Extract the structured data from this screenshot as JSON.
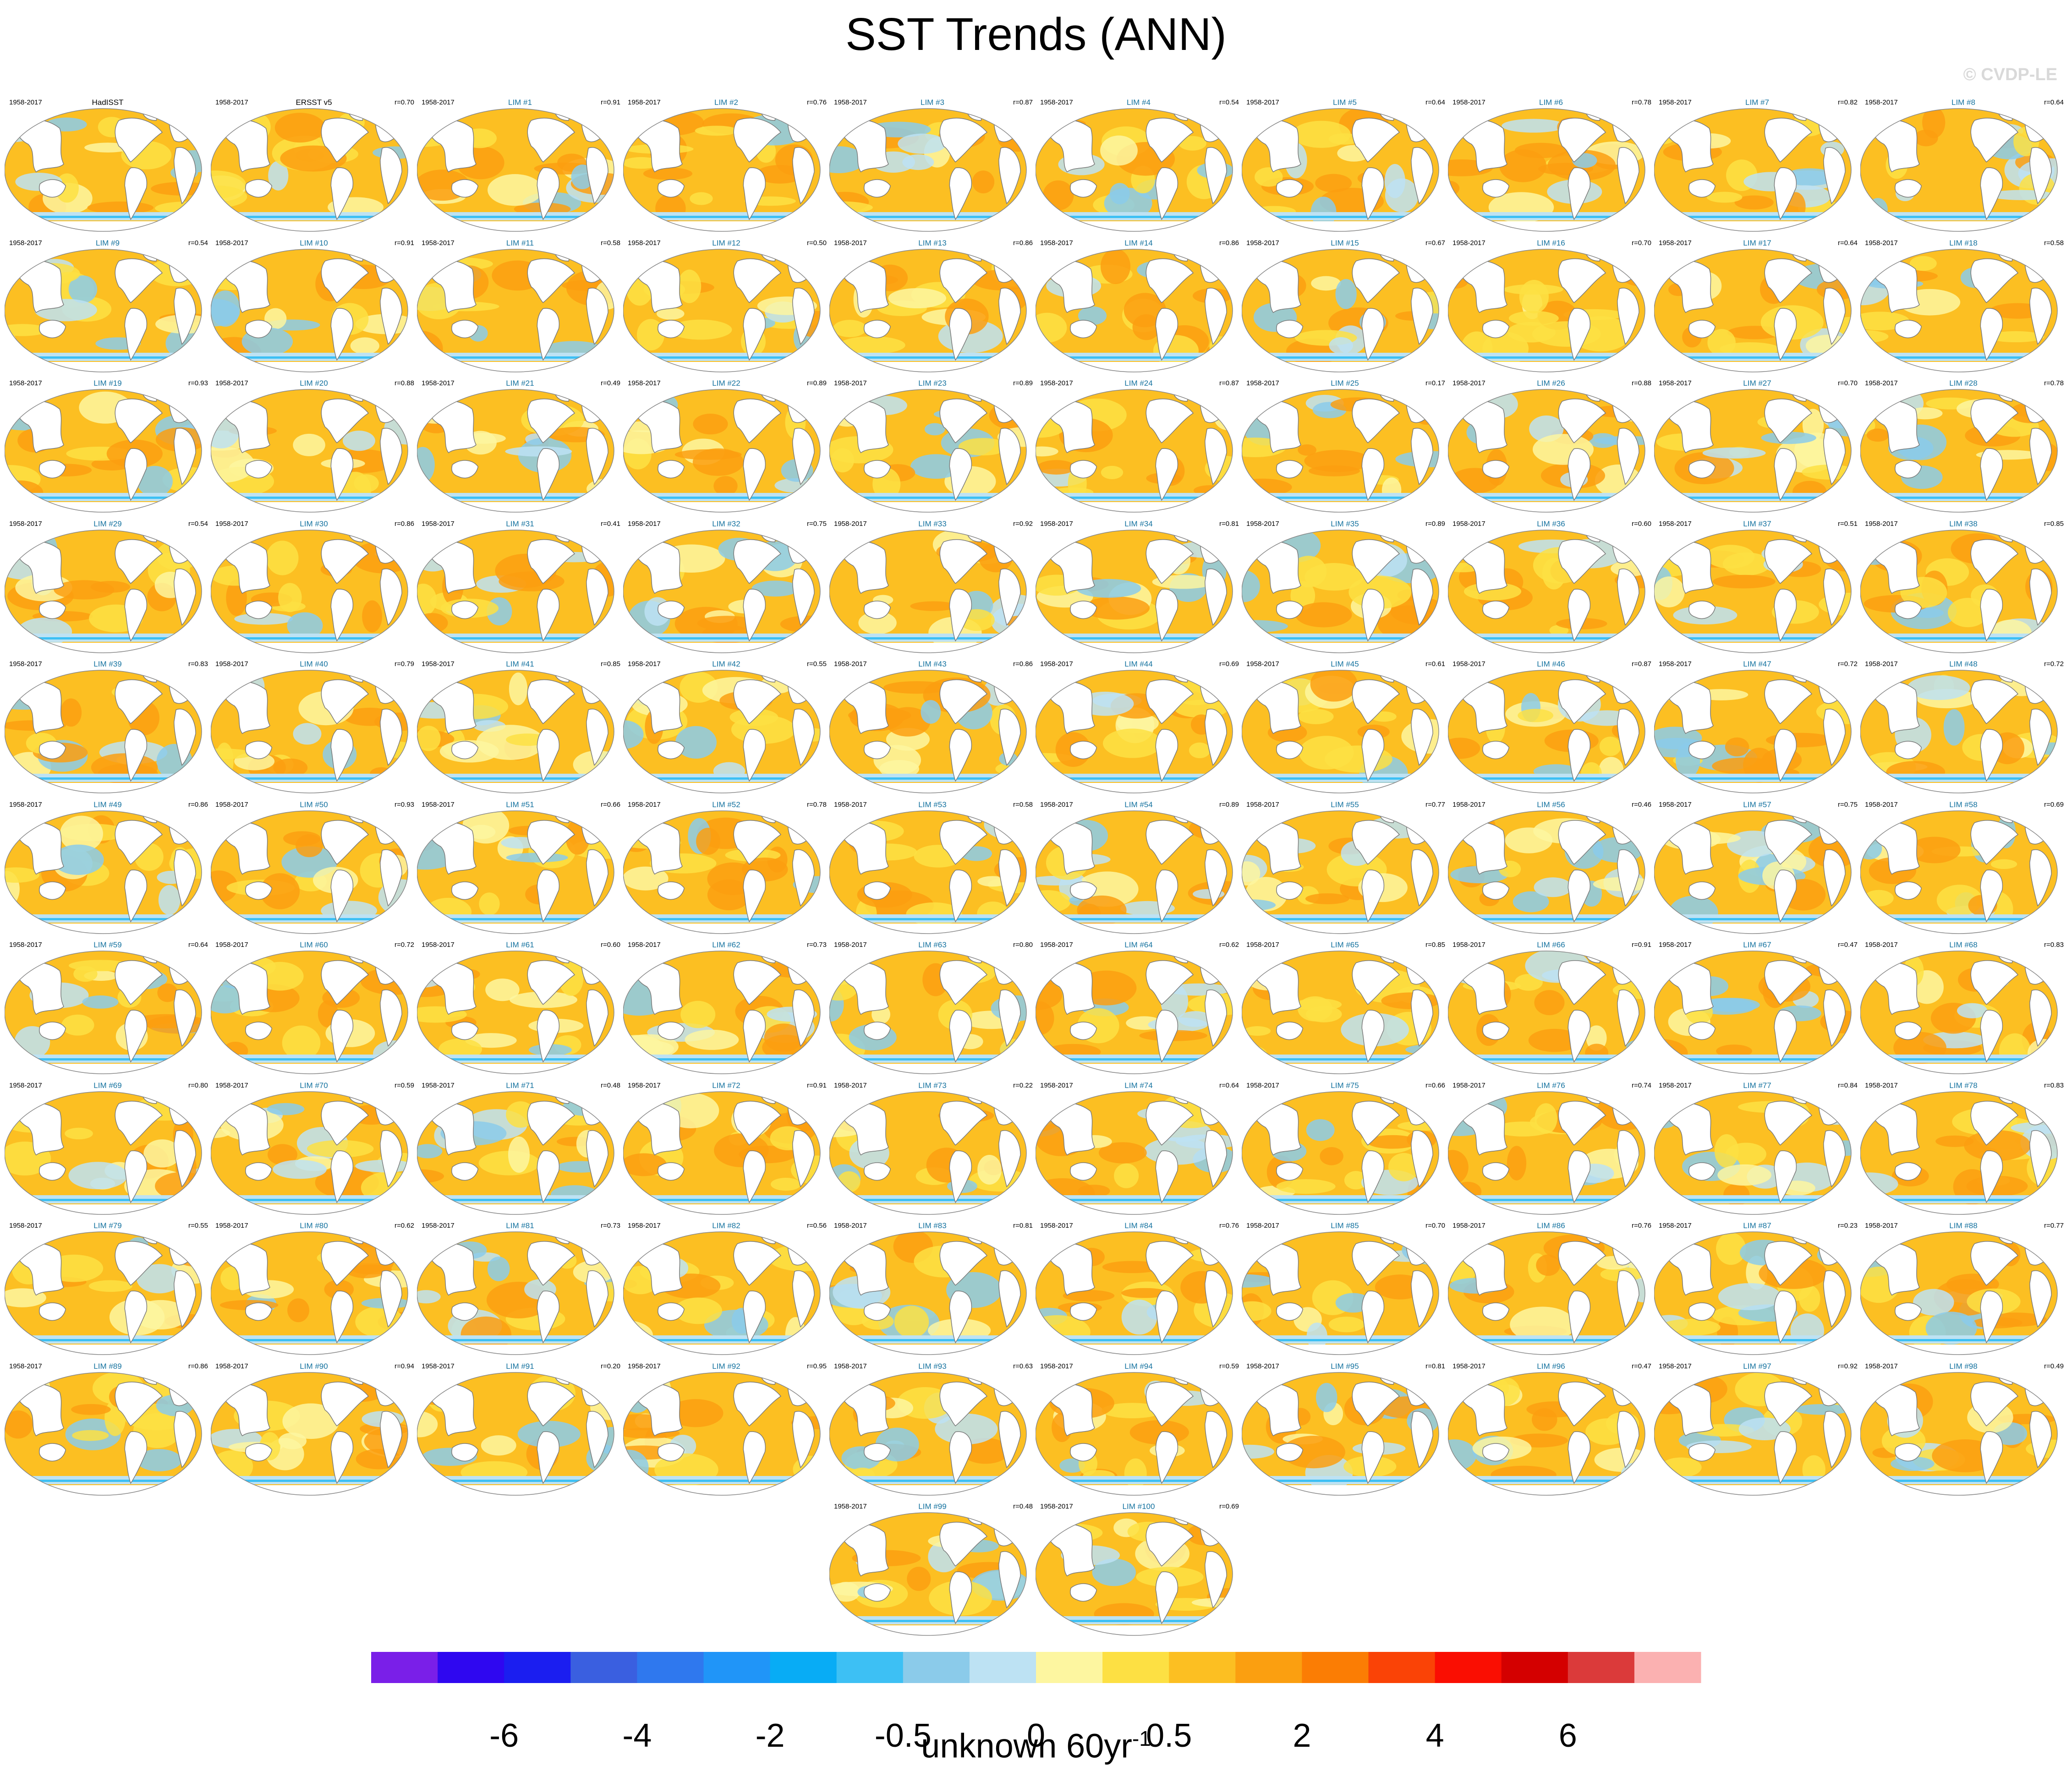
{
  "title": "SST Trends (ANN)",
  "watermark": "© CVDP-LE",
  "units": {
    "base": "unknown 60yr",
    "exponent": "-1"
  },
  "chart_data": {
    "type": "heatmap",
    "title": "SST Trends (ANN)",
    "variable": "SST",
    "units": "unknown 60yr-1",
    "period": "1958-2017",
    "projection": "Robinson (Pacific-centred world map panels)",
    "colorbar": {
      "tick_labels": [
        "-6",
        "-4",
        "-2",
        "-0.5",
        "0",
        "0.5",
        "2",
        "4",
        "6"
      ],
      "colors": [
        "#7a1fe8",
        "#2f07f0",
        "#1b1ef0",
        "#3a5fe0",
        "#2f78ee",
        "#2095f8",
        "#08acf5",
        "#3dc0f4",
        "#8bcbea",
        "#bde2f3",
        "#fdf6a0",
        "#fde043",
        "#fcbf22",
        "#fb9f10",
        "#fb7d04",
        "#fa4306",
        "#fa0e02",
        "#d40000",
        "#db3a3a",
        "#fbb1b1"
      ]
    },
    "panels": [
      {
        "title": "HadISST",
        "years": "1958-2017",
        "r": "",
        "color": "#000000"
      },
      {
        "title": "ERSST v5",
        "years": "1958-2017",
        "r": "r=0.70",
        "color": "#000000"
      },
      {
        "title": "LIM #1",
        "years": "1958-2017",
        "r": "r=0.91",
        "color": "#14729f"
      },
      {
        "title": "LIM #2",
        "years": "1958-2017",
        "r": "r=0.76",
        "color": "#14729f"
      },
      {
        "title": "LIM #3",
        "years": "1958-2017",
        "r": "r=0.87",
        "color": "#14729f"
      },
      {
        "title": "LIM #4",
        "years": "1958-2017",
        "r": "r=0.54",
        "color": "#14729f"
      },
      {
        "title": "LIM #5",
        "years": "1958-2017",
        "r": "r=0.64",
        "color": "#14729f"
      },
      {
        "title": "LIM #6",
        "years": "1958-2017",
        "r": "r=0.78",
        "color": "#14729f"
      },
      {
        "title": "LIM #7",
        "years": "1958-2017",
        "r": "r=0.82",
        "color": "#14729f"
      },
      {
        "title": "LIM #8",
        "years": "1958-2017",
        "r": "r=0.64",
        "color": "#14729f"
      },
      {
        "title": "LIM #9",
        "years": "1958-2017",
        "r": "r=0.54",
        "color": "#14729f"
      },
      {
        "title": "LIM #10",
        "years": "1958-2017",
        "r": "r=0.91",
        "color": "#14729f"
      },
      {
        "title": "LIM #11",
        "years": "1958-2017",
        "r": "r=0.58",
        "color": "#14729f"
      },
      {
        "title": "LIM #12",
        "years": "1958-2017",
        "r": "r=0.50",
        "color": "#14729f"
      },
      {
        "title": "LIM #13",
        "years": "1958-2017",
        "r": "r=0.86",
        "color": "#14729f"
      },
      {
        "title": "LIM #14",
        "years": "1958-2017",
        "r": "r=0.86",
        "color": "#14729f"
      },
      {
        "title": "LIM #15",
        "years": "1958-2017",
        "r": "r=0.67",
        "color": "#14729f"
      },
      {
        "title": "LIM #16",
        "years": "1958-2017",
        "r": "r=0.70",
        "color": "#14729f"
      },
      {
        "title": "LIM #17",
        "years": "1958-2017",
        "r": "r=0.64",
        "color": "#14729f"
      },
      {
        "title": "LIM #18",
        "years": "1958-2017",
        "r": "r=0.58",
        "color": "#14729f"
      },
      {
        "title": "LIM #19",
        "years": "1958-2017",
        "r": "r=0.93",
        "color": "#14729f"
      },
      {
        "title": "LIM #20",
        "years": "1958-2017",
        "r": "r=0.88",
        "color": "#14729f"
      },
      {
        "title": "LIM #21",
        "years": "1958-2017",
        "r": "r=0.49",
        "color": "#14729f"
      },
      {
        "title": "LIM #22",
        "years": "1958-2017",
        "r": "r=0.89",
        "color": "#14729f"
      },
      {
        "title": "LIM #23",
        "years": "1958-2017",
        "r": "r=0.89",
        "color": "#14729f"
      },
      {
        "title": "LIM #24",
        "years": "1958-2017",
        "r": "r=0.87",
        "color": "#14729f"
      },
      {
        "title": "LIM #25",
        "years": "1958-2017",
        "r": "r=0.17",
        "color": "#14729f"
      },
      {
        "title": "LIM #26",
        "years": "1958-2017",
        "r": "r=0.88",
        "color": "#14729f"
      },
      {
        "title": "LIM #27",
        "years": "1958-2017",
        "r": "r=0.70",
        "color": "#14729f"
      },
      {
        "title": "LIM #28",
        "years": "1958-2017",
        "r": "r=0.78",
        "color": "#14729f"
      },
      {
        "title": "LIM #29",
        "years": "1958-2017",
        "r": "r=0.54",
        "color": "#14729f"
      },
      {
        "title": "LIM #30",
        "years": "1958-2017",
        "r": "r=0.86",
        "color": "#14729f"
      },
      {
        "title": "LIM #31",
        "years": "1958-2017",
        "r": "r=0.41",
        "color": "#14729f"
      },
      {
        "title": "LIM #32",
        "years": "1958-2017",
        "r": "r=0.75",
        "color": "#14729f"
      },
      {
        "title": "LIM #33",
        "years": "1958-2017",
        "r": "r=0.92",
        "color": "#14729f"
      },
      {
        "title": "LIM #34",
        "years": "1958-2017",
        "r": "r=0.81",
        "color": "#14729f"
      },
      {
        "title": "LIM #35",
        "years": "1958-2017",
        "r": "r=0.89",
        "color": "#14729f"
      },
      {
        "title": "LIM #36",
        "years": "1958-2017",
        "r": "r=0.60",
        "color": "#14729f"
      },
      {
        "title": "LIM #37",
        "years": "1958-2017",
        "r": "r=0.51",
        "color": "#14729f"
      },
      {
        "title": "LIM #38",
        "years": "1958-2017",
        "r": "r=0.85",
        "color": "#14729f"
      },
      {
        "title": "LIM #39",
        "years": "1958-2017",
        "r": "r=0.83",
        "color": "#14729f"
      },
      {
        "title": "LIM #40",
        "years": "1958-2017",
        "r": "r=0.79",
        "color": "#14729f"
      },
      {
        "title": "LIM #41",
        "years": "1958-2017",
        "r": "r=0.85",
        "color": "#14729f"
      },
      {
        "title": "LIM #42",
        "years": "1958-2017",
        "r": "r=0.55",
        "color": "#14729f"
      },
      {
        "title": "LIM #43",
        "years": "1958-2017",
        "r": "r=0.86",
        "color": "#14729f"
      },
      {
        "title": "LIM #44",
        "years": "1958-2017",
        "r": "r=0.69",
        "color": "#14729f"
      },
      {
        "title": "LIM #45",
        "years": "1958-2017",
        "r": "r=0.61",
        "color": "#14729f"
      },
      {
        "title": "LIM #46",
        "years": "1958-2017",
        "r": "r=0.87",
        "color": "#14729f"
      },
      {
        "title": "LIM #47",
        "years": "1958-2017",
        "r": "r=0.72",
        "color": "#14729f"
      },
      {
        "title": "LIM #48",
        "years": "1958-2017",
        "r": "r=0.72",
        "color": "#14729f"
      },
      {
        "title": "LIM #49",
        "years": "1958-2017",
        "r": "r=0.86",
        "color": "#14729f"
      },
      {
        "title": "LIM #50",
        "years": "1958-2017",
        "r": "r=0.93",
        "color": "#14729f"
      },
      {
        "title": "LIM #51",
        "years": "1958-2017",
        "r": "r=0.66",
        "color": "#14729f"
      },
      {
        "title": "LIM #52",
        "years": "1958-2017",
        "r": "r=0.78",
        "color": "#14729f"
      },
      {
        "title": "LIM #53",
        "years": "1958-2017",
        "r": "r=0.58",
        "color": "#14729f"
      },
      {
        "title": "LIM #54",
        "years": "1958-2017",
        "r": "r=0.89",
        "color": "#14729f"
      },
      {
        "title": "LIM #55",
        "years": "1958-2017",
        "r": "r=0.77",
        "color": "#14729f"
      },
      {
        "title": "LIM #56",
        "years": "1958-2017",
        "r": "r=0.46",
        "color": "#14729f"
      },
      {
        "title": "LIM #57",
        "years": "1958-2017",
        "r": "r=0.75",
        "color": "#14729f"
      },
      {
        "title": "LIM #58",
        "years": "1958-2017",
        "r": "r=0.69",
        "color": "#14729f"
      },
      {
        "title": "LIM #59",
        "years": "1958-2017",
        "r": "r=0.64",
        "color": "#14729f"
      },
      {
        "title": "LIM #60",
        "years": "1958-2017",
        "r": "r=0.72",
        "color": "#14729f"
      },
      {
        "title": "LIM #61",
        "years": "1958-2017",
        "r": "r=0.60",
        "color": "#14729f"
      },
      {
        "title": "LIM #62",
        "years": "1958-2017",
        "r": "r=0.73",
        "color": "#14729f"
      },
      {
        "title": "LIM #63",
        "years": "1958-2017",
        "r": "r=0.80",
        "color": "#14729f"
      },
      {
        "title": "LIM #64",
        "years": "1958-2017",
        "r": "r=0.62",
        "color": "#14729f"
      },
      {
        "title": "LIM #65",
        "years": "1958-2017",
        "r": "r=0.85",
        "color": "#14729f"
      },
      {
        "title": "LIM #66",
        "years": "1958-2017",
        "r": "r=0.91",
        "color": "#14729f"
      },
      {
        "title": "LIM #67",
        "years": "1958-2017",
        "r": "r=0.47",
        "color": "#14729f"
      },
      {
        "title": "LIM #68",
        "years": "1958-2017",
        "r": "r=0.83",
        "color": "#14729f"
      },
      {
        "title": "LIM #69",
        "years": "1958-2017",
        "r": "r=0.80",
        "color": "#14729f"
      },
      {
        "title": "LIM #70",
        "years": "1958-2017",
        "r": "r=0.59",
        "color": "#14729f"
      },
      {
        "title": "LIM #71",
        "years": "1958-2017",
        "r": "r=0.48",
        "color": "#14729f"
      },
      {
        "title": "LIM #72",
        "years": "1958-2017",
        "r": "r=0.91",
        "color": "#14729f"
      },
      {
        "title": "LIM #73",
        "years": "1958-2017",
        "r": "r=0.22",
        "color": "#14729f"
      },
      {
        "title": "LIM #74",
        "years": "1958-2017",
        "r": "r=0.64",
        "color": "#14729f"
      },
      {
        "title": "LIM #75",
        "years": "1958-2017",
        "r": "r=0.66",
        "color": "#14729f"
      },
      {
        "title": "LIM #76",
        "years": "1958-2017",
        "r": "r=0.74",
        "color": "#14729f"
      },
      {
        "title": "LIM #77",
        "years": "1958-2017",
        "r": "r=0.84",
        "color": "#14729f"
      },
      {
        "title": "LIM #78",
        "years": "1958-2017",
        "r": "r=0.83",
        "color": "#14729f"
      },
      {
        "title": "LIM #79",
        "years": "1958-2017",
        "r": "r=0.55",
        "color": "#14729f"
      },
      {
        "title": "LIM #80",
        "years": "1958-2017",
        "r": "r=0.62",
        "color": "#14729f"
      },
      {
        "title": "LIM #81",
        "years": "1958-2017",
        "r": "r=0.73",
        "color": "#14729f"
      },
      {
        "title": "LIM #82",
        "years": "1958-2017",
        "r": "r=0.56",
        "color": "#14729f"
      },
      {
        "title": "LIM #83",
        "years": "1958-2017",
        "r": "r=0.81",
        "color": "#14729f"
      },
      {
        "title": "LIM #84",
        "years": "1958-2017",
        "r": "r=0.76",
        "color": "#14729f"
      },
      {
        "title": "LIM #85",
        "years": "1958-2017",
        "r": "r=0.70",
        "color": "#14729f"
      },
      {
        "title": "LIM #86",
        "years": "1958-2017",
        "r": "r=0.76",
        "color": "#14729f"
      },
      {
        "title": "LIM #87",
        "years": "1958-2017",
        "r": "r=0.23",
        "color": "#14729f"
      },
      {
        "title": "LIM #88",
        "years": "1958-2017",
        "r": "r=0.77",
        "color": "#14729f"
      },
      {
        "title": "LIM #89",
        "years": "1958-2017",
        "r": "r=0.86",
        "color": "#14729f"
      },
      {
        "title": "LIM #90",
        "years": "1958-2017",
        "r": "r=0.94",
        "color": "#14729f"
      },
      {
        "title": "LIM #91",
        "years": "1958-2017",
        "r": "r=0.20",
        "color": "#14729f"
      },
      {
        "title": "LIM #92",
        "years": "1958-2017",
        "r": "r=0.95",
        "color": "#14729f"
      },
      {
        "title": "LIM #93",
        "years": "1958-2017",
        "r": "r=0.63",
        "color": "#14729f"
      },
      {
        "title": "LIM #94",
        "years": "1958-2017",
        "r": "r=0.59",
        "color": "#14729f"
      },
      {
        "title": "LIM #95",
        "years": "1958-2017",
        "r": "r=0.81",
        "color": "#14729f"
      },
      {
        "title": "LIM #96",
        "years": "1958-2017",
        "r": "r=0.47",
        "color": "#14729f"
      },
      {
        "title": "LIM #97",
        "years": "1958-2017",
        "r": "r=0.92",
        "color": "#14729f"
      },
      {
        "title": "LIM #98",
        "years": "1958-2017",
        "r": "r=0.49",
        "color": "#14729f"
      },
      {
        "title": "LIM #99",
        "years": "1958-2017",
        "r": "r=0.48",
        "color": "#14729f"
      },
      {
        "title": "LIM #100",
        "years": "1958-2017",
        "r": "r=0.69",
        "color": "#14729f"
      }
    ]
  }
}
